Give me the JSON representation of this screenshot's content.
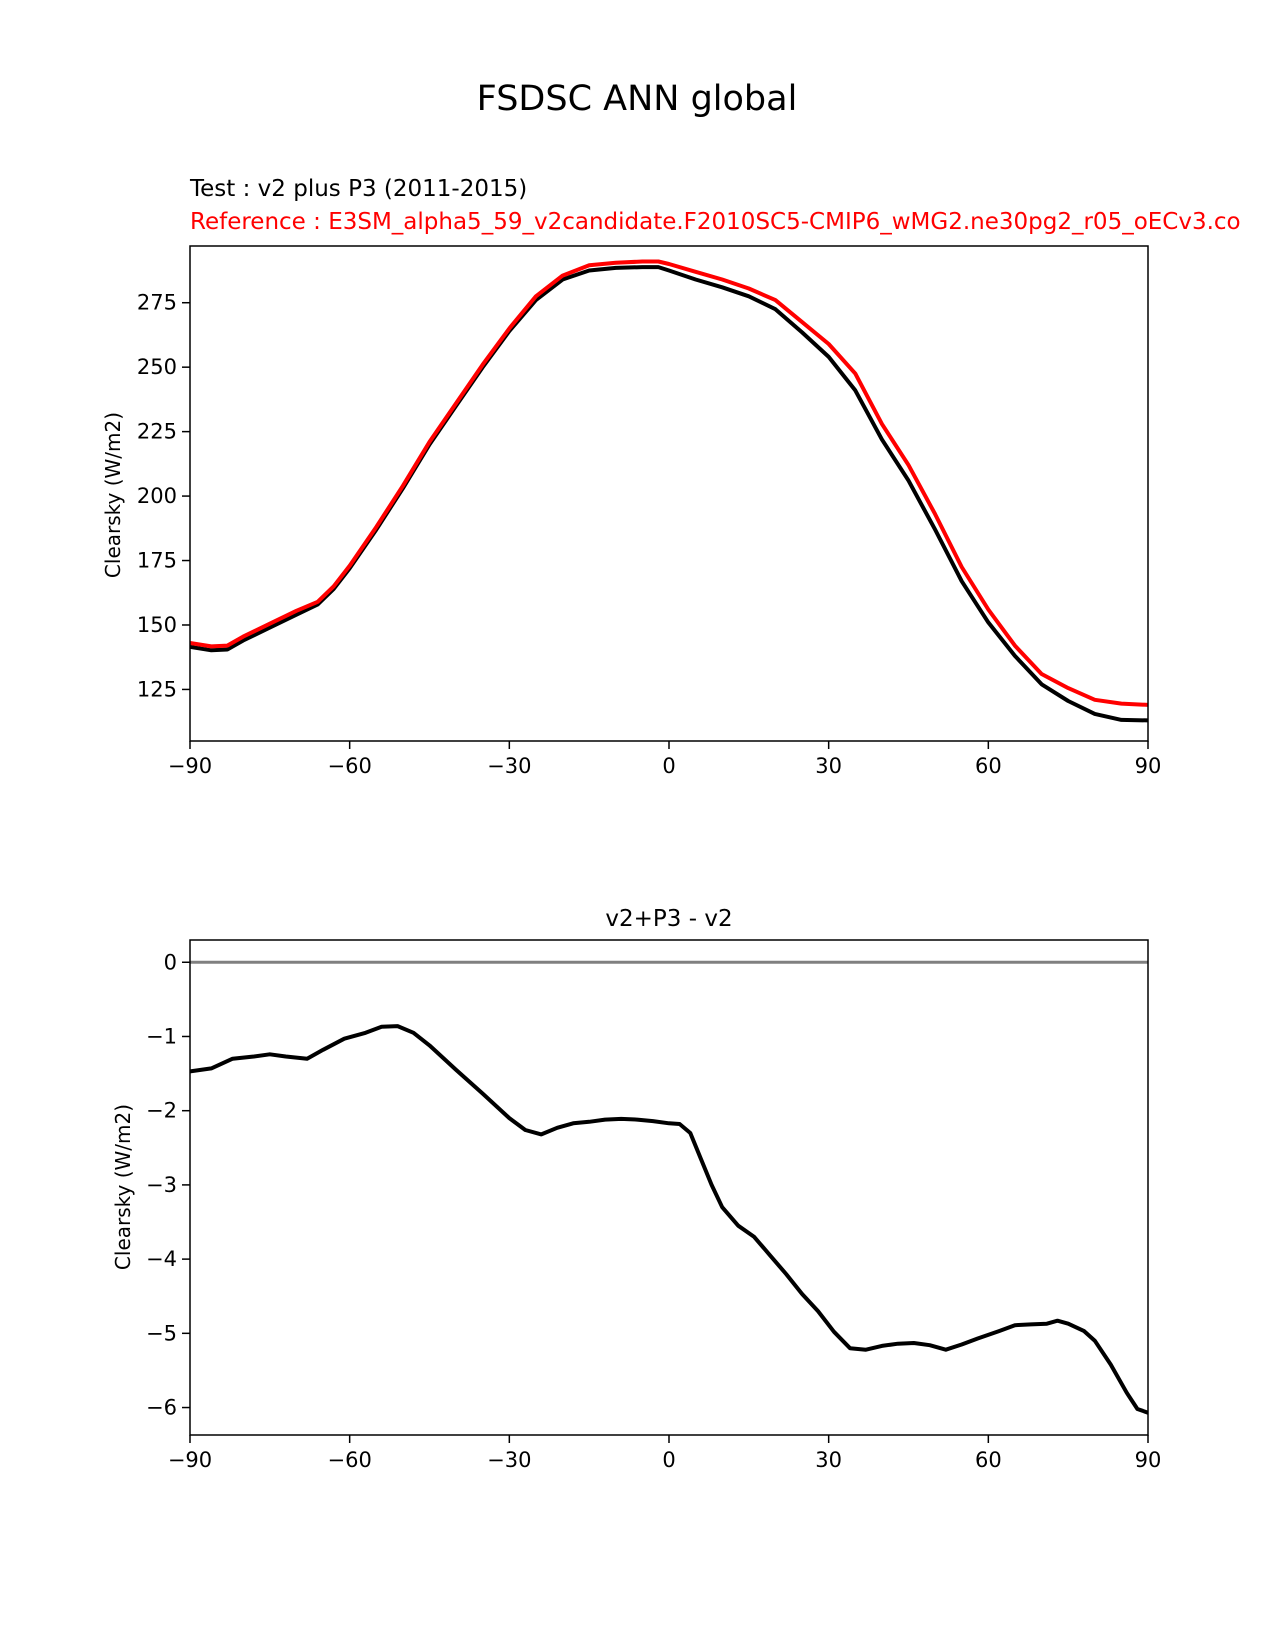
{
  "figure_title": "FSDSC ANN global",
  "colors": {
    "test": "#000000",
    "reference": "#ff0000",
    "zero_line": "#808080"
  },
  "chart_data": [
    {
      "type": "line",
      "subtitle_test": "Test : v2 plus P3 (2011-2015)",
      "subtitle_reference": "Reference : E3SM_alpha5_59_v2candidate.F2010SC5-CMIP6_wMG2.ne30pg2_r05_oECv3.co",
      "xlabel": "",
      "ylabel": "Clearsky (W/m2)",
      "xlim": [
        -90,
        90
      ],
      "ylim": [
        105,
        297
      ],
      "xticks": [
        -90,
        -60,
        -30,
        0,
        30,
        60,
        90
      ],
      "xtick_labels": [
        "−90",
        "−60",
        "−30",
        "0",
        "30",
        "60",
        "90"
      ],
      "yticks": [
        125,
        150,
        175,
        200,
        225,
        250,
        275
      ],
      "ytick_labels": [
        "125",
        "150",
        "175",
        "200",
        "225",
        "250",
        "275"
      ],
      "x": [
        -90,
        -86,
        -83,
        -80,
        -75,
        -70,
        -66,
        -63,
        -60,
        -55,
        -50,
        -45,
        -40,
        -35,
        -30,
        -25,
        -20,
        -15,
        -10,
        -5,
        -2,
        0,
        5,
        10,
        15,
        20,
        25,
        30,
        35,
        40,
        45,
        50,
        55,
        60,
        65,
        70,
        75,
        80,
        85,
        90
      ],
      "series": [
        {
          "name": "Test",
          "color": "#000000",
          "values": [
            141.5,
            140.2,
            140.5,
            144,
            149,
            154,
            158,
            164,
            172,
            187,
            203,
            220,
            235,
            250,
            264,
            276,
            284,
            287.5,
            288.5,
            288.8,
            288.8,
            287.5,
            284,
            281,
            277.5,
            272.5,
            263.5,
            254,
            241,
            222,
            206,
            187,
            167,
            151,
            138,
            127,
            120.5,
            115.5,
            113.2,
            113
          ]
        },
        {
          "name": "Reference",
          "color": "#ff0000",
          "values": [
            143,
            141.7,
            142,
            145.5,
            150.5,
            155.5,
            159,
            165,
            173,
            188,
            204,
            221,
            236,
            251,
            265,
            277.5,
            285.5,
            289.5,
            290.5,
            291,
            291,
            290,
            287,
            284,
            280.5,
            276,
            267.5,
            259,
            247.5,
            228,
            212,
            193,
            172.5,
            156,
            142,
            131,
            125.5,
            121,
            119.5,
            119
          ]
        }
      ]
    },
    {
      "type": "line",
      "title": "v2+P3 - v2",
      "xlabel": "",
      "ylabel": "Clearsky (W/m2)",
      "xlim": [
        -90,
        90
      ],
      "ylim": [
        -6.37,
        0.3
      ],
      "xticks": [
        -90,
        -60,
        -30,
        0,
        30,
        60,
        90
      ],
      "xtick_labels": [
        "−90",
        "−60",
        "−30",
        "0",
        "30",
        "60",
        "90"
      ],
      "yticks": [
        0,
        -1,
        -2,
        -3,
        -4,
        -5,
        -6
      ],
      "ytick_labels": [
        "0",
        "−1",
        "−2",
        "−3",
        "−4",
        "−5",
        "−6"
      ],
      "zero_line": 0,
      "x": [
        -90,
        -86,
        -82,
        -78,
        -75,
        -72,
        -68,
        -65,
        -61,
        -57,
        -54,
        -51,
        -48,
        -45,
        -40,
        -35,
        -30,
        -27,
        -24,
        -21,
        -18,
        -15,
        -12,
        -9,
        -6,
        -3,
        0,
        2,
        4,
        6,
        8,
        10,
        13,
        16,
        19,
        22,
        25,
        28,
        31,
        34,
        37,
        40,
        43,
        46,
        49,
        52,
        55,
        58,
        62,
        65,
        68,
        71,
        73,
        75,
        78,
        80,
        83,
        86,
        88,
        90
      ],
      "series": [
        {
          "name": "v2+P3 - v2",
          "color": "#000000",
          "values": [
            -1.47,
            -1.43,
            -1.3,
            -1.27,
            -1.24,
            -1.27,
            -1.3,
            -1.18,
            -1.03,
            -0.95,
            -0.87,
            -0.86,
            -0.95,
            -1.12,
            -1.45,
            -1.77,
            -2.1,
            -2.26,
            -2.32,
            -2.23,
            -2.17,
            -2.15,
            -2.12,
            -2.11,
            -2.12,
            -2.14,
            -2.17,
            -2.18,
            -2.3,
            -2.65,
            -3.0,
            -3.3,
            -3.55,
            -3.7,
            -3.95,
            -4.2,
            -4.47,
            -4.7,
            -4.98,
            -5.2,
            -5.22,
            -5.17,
            -5.14,
            -5.13,
            -5.16,
            -5.22,
            -5.15,
            -5.07,
            -4.97,
            -4.89,
            -4.88,
            -4.87,
            -4.83,
            -4.87,
            -4.97,
            -5.1,
            -5.42,
            -5.8,
            -6.02,
            -6.07
          ]
        }
      ]
    }
  ]
}
